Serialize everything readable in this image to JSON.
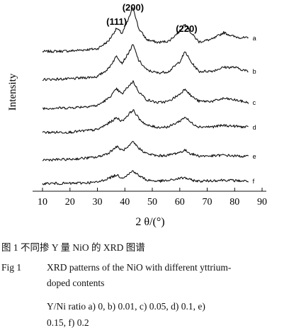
{
  "chart_data": {
    "type": "line",
    "xlabel": "2 θ/(°)",
    "ylabel": "Intensity",
    "xlim": [
      10,
      90
    ],
    "xticks": [
      10,
      20,
      30,
      40,
      50,
      60,
      70,
      80,
      90
    ],
    "peak_labels": [
      {
        "text": "(111)",
        "x": 37
      },
      {
        "text": "(200)",
        "x": 43
      },
      {
        "text": "(220)",
        "x": 62.5
      }
    ],
    "series": [
      {
        "name": "a",
        "points": [
          [
            10,
            0.18
          ],
          [
            20,
            0.2
          ],
          [
            30,
            0.28
          ],
          [
            34,
            0.55
          ],
          [
            37,
            1.0
          ],
          [
            39,
            0.82
          ],
          [
            41,
            1.25
          ],
          [
            43,
            1.75
          ],
          [
            45,
            1.0
          ],
          [
            48,
            0.6
          ],
          [
            52,
            0.5
          ],
          [
            56,
            0.55
          ],
          [
            60,
            0.9
          ],
          [
            62,
            1.18
          ],
          [
            64,
            0.85
          ],
          [
            67,
            0.52
          ],
          [
            72,
            0.62
          ],
          [
            76,
            0.85
          ],
          [
            80,
            0.7
          ],
          [
            85,
            0.65
          ]
        ]
      },
      {
        "name": "b",
        "points": [
          [
            10,
            0.12
          ],
          [
            20,
            0.14
          ],
          [
            30,
            0.22
          ],
          [
            34,
            0.5
          ],
          [
            37,
            0.95
          ],
          [
            39,
            0.7
          ],
          [
            41,
            1.0
          ],
          [
            43,
            1.35
          ],
          [
            45,
            0.8
          ],
          [
            48,
            0.45
          ],
          [
            52,
            0.35
          ],
          [
            56,
            0.4
          ],
          [
            60,
            0.75
          ],
          [
            62,
            1.1
          ],
          [
            64,
            0.75
          ],
          [
            67,
            0.4
          ],
          [
            72,
            0.42
          ],
          [
            76,
            0.55
          ],
          [
            80,
            0.55
          ],
          [
            85,
            0.4
          ]
        ]
      },
      {
        "name": "c",
        "points": [
          [
            10,
            0.1
          ],
          [
            20,
            0.12
          ],
          [
            30,
            0.2
          ],
          [
            34,
            0.45
          ],
          [
            37,
            0.78
          ],
          [
            39,
            0.6
          ],
          [
            41,
            0.85
          ],
          [
            43,
            1.05
          ],
          [
            45,
            0.7
          ],
          [
            48,
            0.4
          ],
          [
            52,
            0.3
          ],
          [
            56,
            0.35
          ],
          [
            60,
            0.6
          ],
          [
            62,
            0.8
          ],
          [
            64,
            0.55
          ],
          [
            67,
            0.35
          ],
          [
            72,
            0.35
          ],
          [
            76,
            0.45
          ],
          [
            80,
            0.4
          ],
          [
            85,
            0.3
          ]
        ]
      },
      {
        "name": "d",
        "points": [
          [
            10,
            0.1
          ],
          [
            20,
            0.11
          ],
          [
            30,
            0.2
          ],
          [
            34,
            0.42
          ],
          [
            37,
            0.62
          ],
          [
            39,
            0.5
          ],
          [
            41,
            0.7
          ],
          [
            43,
            0.9
          ],
          [
            45,
            0.6
          ],
          [
            48,
            0.35
          ],
          [
            52,
            0.28
          ],
          [
            56,
            0.3
          ],
          [
            60,
            0.5
          ],
          [
            62,
            0.65
          ],
          [
            64,
            0.45
          ],
          [
            67,
            0.3
          ],
          [
            72,
            0.3
          ],
          [
            76,
            0.35
          ],
          [
            80,
            0.32
          ],
          [
            85,
            0.28
          ]
        ]
      },
      {
        "name": "e",
        "points": [
          [
            10,
            0.08
          ],
          [
            20,
            0.1
          ],
          [
            30,
            0.18
          ],
          [
            34,
            0.32
          ],
          [
            37,
            0.55
          ],
          [
            39,
            0.42
          ],
          [
            41,
            0.5
          ],
          [
            43,
            0.72
          ],
          [
            45,
            0.5
          ],
          [
            48,
            0.3
          ],
          [
            52,
            0.22
          ],
          [
            56,
            0.25
          ],
          [
            60,
            0.35
          ],
          [
            62,
            0.42
          ],
          [
            64,
            0.3
          ],
          [
            67,
            0.22
          ],
          [
            72,
            0.22
          ],
          [
            76,
            0.25
          ],
          [
            80,
            0.22
          ],
          [
            85,
            0.2
          ]
        ]
      },
      {
        "name": "f",
        "points": [
          [
            10,
            0.1
          ],
          [
            20,
            0.1
          ],
          [
            30,
            0.14
          ],
          [
            34,
            0.28
          ],
          [
            37,
            0.4
          ],
          [
            39,
            0.3
          ],
          [
            41,
            0.4
          ],
          [
            43,
            0.55
          ],
          [
            45,
            0.38
          ],
          [
            48,
            0.22
          ],
          [
            52,
            0.18
          ],
          [
            56,
            0.2
          ],
          [
            60,
            0.28
          ],
          [
            62,
            0.3
          ],
          [
            64,
            0.22
          ],
          [
            67,
            0.18
          ],
          [
            72,
            0.2
          ],
          [
            76,
            0.22
          ],
          [
            80,
            0.2
          ],
          [
            85,
            0.18
          ]
        ]
      }
    ]
  },
  "captions": {
    "zh": "图  1  不同掺 Y 量 NiO 的 XRD 图谱",
    "en_fig": "Fig 1",
    "en_title_line1": "XRD patterns of the NiO with different yttrium-",
    "en_title_line2": "doped contents",
    "en_ratio_line1": "Y/Ni ratio   a) 0,   b)  0.01,  c)  0.05,  d)  0.1,  e)",
    "en_ratio_line2": "0.15,   f)  0.2"
  }
}
